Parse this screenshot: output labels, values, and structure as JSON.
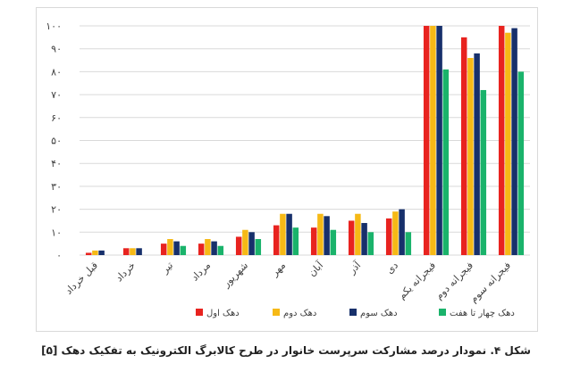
{
  "caption": "شکل ۴. نمودار درصد مشارکت سرپرست خانوار در طرح کالابرگ الکترونیک به تفکیک دهک [۵]",
  "chart_data": {
    "type": "bar",
    "title": "",
    "xlabel": "",
    "ylabel": "",
    "ylim": [
      0,
      100
    ],
    "yticks": [
      0,
      10,
      20,
      30,
      40,
      50,
      60,
      70,
      80,
      90,
      100
    ],
    "ytick_labels": [
      "۰",
      "۱۰",
      "۲۰",
      "۳۰",
      "۴۰",
      "۵۰",
      "۶۰",
      "۷۰",
      "۸۰",
      "۹۰",
      "۱۰۰"
    ],
    "grid": true,
    "legend_position": "bottom",
    "categories": [
      "قبل خرداد",
      "خرداد",
      "تیر",
      "مرداد",
      "شهریور",
      "مهر",
      "آبان",
      "آذر",
      "دی",
      "فیجرانه یکم",
      "فیجرانه دوم",
      "فیجرانه سوم"
    ],
    "series": [
      {
        "name": "دهک اول",
        "color": "#e8231f",
        "values": [
          1,
          3,
          5,
          5,
          8,
          13,
          12,
          15,
          16,
          100,
          95,
          100
        ]
      },
      {
        "name": "دهک دوم",
        "color": "#f6b916",
        "values": [
          2,
          3,
          7,
          7,
          11,
          18,
          18,
          18,
          19,
          100,
          86,
          97
        ]
      },
      {
        "name": "دهک سوم",
        "color": "#17306b",
        "values": [
          2,
          3,
          6,
          6,
          10,
          18,
          17,
          14,
          20,
          100,
          88,
          99
        ]
      },
      {
        "name": "دهک چهار تا هفت",
        "color": "#1ab36b",
        "values": [
          0,
          0,
          4,
          4,
          7,
          12,
          11,
          10,
          10,
          81,
          72,
          80
        ]
      }
    ]
  }
}
